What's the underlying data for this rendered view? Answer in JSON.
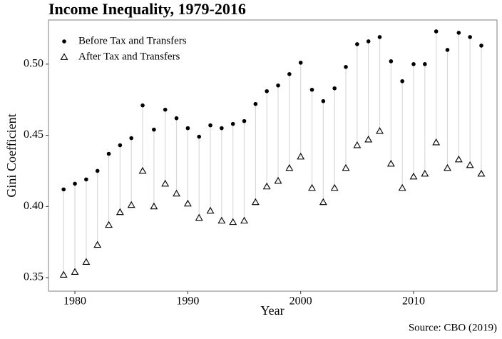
{
  "chart_data": {
    "type": "dumbbell",
    "title": "Income Inequality, 1979-2016",
    "x_label": "Year",
    "y_label": "Gini Coefficient",
    "source": "Source: CBO (2019)",
    "x": [
      1979,
      1980,
      1981,
      1982,
      1983,
      1984,
      1985,
      1986,
      1987,
      1988,
      1989,
      1990,
      1991,
      1992,
      1993,
      1994,
      1995,
      1996,
      1997,
      1998,
      1999,
      2000,
      2001,
      2002,
      2003,
      2004,
      2005,
      2006,
      2007,
      2008,
      2009,
      2010,
      2011,
      2012,
      2013,
      2014,
      2015,
      2016
    ],
    "series": [
      {
        "name": "Before Tax and Transfers",
        "color": "#000000",
        "marker": "circle",
        "values": [
          0.412,
          0.416,
          0.419,
          0.425,
          0.437,
          0.443,
          0.448,
          0.471,
          0.454,
          0.468,
          0.462,
          0.455,
          0.449,
          0.457,
          0.455,
          0.458,
          0.46,
          0.472,
          0.481,
          0.485,
          0.493,
          0.501,
          0.482,
          0.474,
          0.483,
          0.498,
          0.514,
          0.516,
          0.519,
          0.502,
          0.488,
          0.5,
          0.5,
          0.523,
          0.51,
          0.522,
          0.519,
          0.513
        ]
      },
      {
        "name": "After Tax and Transfers",
        "color": "#000000",
        "marker": "triangle",
        "values": [
          0.352,
          0.354,
          0.361,
          0.373,
          0.387,
          0.396,
          0.401,
          0.425,
          0.4,
          0.416,
          0.409,
          0.402,
          0.392,
          0.397,
          0.39,
          0.389,
          0.39,
          0.403,
          0.414,
          0.418,
          0.427,
          0.435,
          0.413,
          0.403,
          0.413,
          0.427,
          0.443,
          0.447,
          0.453,
          0.43,
          0.413,
          0.421,
          0.423,
          0.445,
          0.427,
          0.433,
          0.429,
          0.423
        ]
      }
    ],
    "connector_color": "#d9d9d9",
    "xlim": [
      1977.66,
      2017.39
    ],
    "xticks": [
      1980,
      1990,
      2000,
      2010
    ],
    "ylim": [
      0.3405,
      0.531
    ],
    "yticks": [
      0.35,
      {
        "value": 0.4,
        "label": "0.40"
      },
      0.45,
      {
        "value": 0.5,
        "label": "0.50"
      }
    ],
    "legend_position": "top-left"
  }
}
